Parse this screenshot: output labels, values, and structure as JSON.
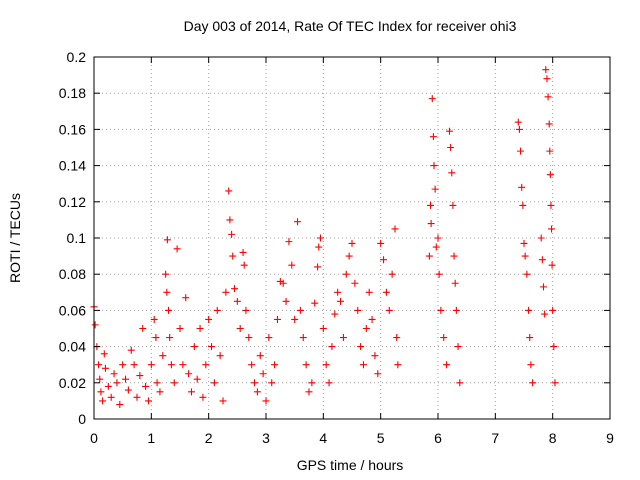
{
  "chart_data": {
    "type": "scatter",
    "title": "Day 003 of 2014, Rate Of TEC Index for receiver ohi3",
    "xlabel": "GPS time / hours",
    "ylabel": "ROTI / TECUs",
    "xlim": [
      0,
      9
    ],
    "ylim": [
      0,
      0.2
    ],
    "xticks": [
      "0",
      "1",
      "2",
      "3",
      "4",
      "5",
      "6",
      "7",
      "8",
      "9"
    ],
    "yticks": [
      "0",
      "0.02",
      "0.04",
      "0.06",
      "0.08",
      "0.1",
      "0.12",
      "0.14",
      "0.16",
      "0.18",
      "0.2"
    ],
    "grid": true,
    "marker": "+",
    "color": "#ff0000",
    "series": [
      {
        "name": "ROTI",
        "points": [
          [
            0.0,
            0.062
          ],
          [
            0.02,
            0.052
          ],
          [
            0.05,
            0.04
          ],
          [
            0.08,
            0.03
          ],
          [
            0.1,
            0.022
          ],
          [
            0.12,
            0.015
          ],
          [
            0.15,
            0.01
          ],
          [
            0.18,
            0.036
          ],
          [
            0.2,
            0.028
          ],
          [
            0.25,
            0.018
          ],
          [
            0.3,
            0.012
          ],
          [
            0.35,
            0.025
          ],
          [
            0.4,
            0.02
          ],
          [
            0.45,
            0.008
          ],
          [
            0.5,
            0.03
          ],
          [
            0.55,
            0.022
          ],
          [
            0.6,
            0.016
          ],
          [
            0.65,
            0.038
          ],
          [
            0.7,
            0.03
          ],
          [
            0.75,
            0.012
          ],
          [
            0.8,
            0.024
          ],
          [
            0.85,
            0.05
          ],
          [
            0.9,
            0.018
          ],
          [
            0.95,
            0.01
          ],
          [
            1.0,
            0.03
          ],
          [
            1.05,
            0.055
          ],
          [
            1.08,
            0.045
          ],
          [
            1.1,
            0.02
          ],
          [
            1.15,
            0.015
          ],
          [
            1.2,
            0.035
          ],
          [
            1.25,
            0.08
          ],
          [
            1.27,
            0.07
          ],
          [
            1.28,
            0.099
          ],
          [
            1.3,
            0.06
          ],
          [
            1.32,
            0.045
          ],
          [
            1.35,
            0.03
          ],
          [
            1.4,
            0.02
          ],
          [
            1.45,
            0.094
          ],
          [
            1.5,
            0.05
          ],
          [
            1.55,
            0.03
          ],
          [
            1.6,
            0.067
          ],
          [
            1.65,
            0.025
          ],
          [
            1.7,
            0.015
          ],
          [
            1.75,
            0.04
          ],
          [
            1.8,
            0.022
          ],
          [
            1.85,
            0.05
          ],
          [
            1.9,
            0.012
          ],
          [
            1.95,
            0.03
          ],
          [
            2.0,
            0.055
          ],
          [
            2.05,
            0.04
          ],
          [
            2.1,
            0.02
          ],
          [
            2.15,
            0.06
          ],
          [
            2.2,
            0.035
          ],
          [
            2.25,
            0.01
          ],
          [
            2.3,
            0.07
          ],
          [
            2.35,
            0.126
          ],
          [
            2.37,
            0.11
          ],
          [
            2.4,
            0.102
          ],
          [
            2.42,
            0.09
          ],
          [
            2.45,
            0.072
          ],
          [
            2.5,
            0.065
          ],
          [
            2.55,
            0.05
          ],
          [
            2.6,
            0.092
          ],
          [
            2.62,
            0.085
          ],
          [
            2.65,
            0.06
          ],
          [
            2.7,
            0.045
          ],
          [
            2.75,
            0.03
          ],
          [
            2.8,
            0.02
          ],
          [
            2.85,
            0.015
          ],
          [
            2.9,
            0.035
          ],
          [
            2.95,
            0.025
          ],
          [
            3.0,
            0.01
          ],
          [
            3.05,
            0.045
          ],
          [
            3.1,
            0.02
          ],
          [
            3.15,
            0.03
          ],
          [
            3.2,
            0.055
          ],
          [
            3.25,
            0.076
          ],
          [
            3.3,
            0.075
          ],
          [
            3.35,
            0.065
          ],
          [
            3.4,
            0.098
          ],
          [
            3.45,
            0.085
          ],
          [
            3.5,
            0.055
          ],
          [
            3.55,
            0.109
          ],
          [
            3.6,
            0.06
          ],
          [
            3.65,
            0.045
          ],
          [
            3.7,
            0.03
          ],
          [
            3.75,
            0.015
          ],
          [
            3.8,
            0.02
          ],
          [
            3.85,
            0.064
          ],
          [
            3.9,
            0.084
          ],
          [
            3.92,
            0.095
          ],
          [
            3.95,
            0.1
          ],
          [
            4.0,
            0.05
          ],
          [
            4.05,
            0.03
          ],
          [
            4.1,
            0.02
          ],
          [
            4.15,
            0.04
          ],
          [
            4.2,
            0.058
          ],
          [
            4.25,
            0.07
          ],
          [
            4.3,
            0.065
          ],
          [
            4.35,
            0.045
          ],
          [
            4.4,
            0.08
          ],
          [
            4.45,
            0.09
          ],
          [
            4.5,
            0.097
          ],
          [
            4.55,
            0.075
          ],
          [
            4.6,
            0.06
          ],
          [
            4.65,
            0.04
          ],
          [
            4.7,
            0.03
          ],
          [
            4.75,
            0.05
          ],
          [
            4.8,
            0.07
          ],
          [
            4.85,
            0.055
          ],
          [
            4.9,
            0.035
          ],
          [
            4.95,
            0.025
          ],
          [
            5.0,
            0.097
          ],
          [
            5.05,
            0.088
          ],
          [
            5.1,
            0.07
          ],
          [
            5.15,
            0.06
          ],
          [
            5.2,
            0.08
          ],
          [
            5.25,
            0.105
          ],
          [
            5.28,
            0.045
          ],
          [
            5.3,
            0.03
          ],
          [
            5.85,
            0.09
          ],
          [
            5.87,
            0.118
          ],
          [
            5.88,
            0.108
          ],
          [
            5.9,
            0.177
          ],
          [
            5.92,
            0.156
          ],
          [
            5.93,
            0.14
          ],
          [
            5.95,
            0.127
          ],
          [
            5.97,
            0.095
          ],
          [
            6.0,
            0.1
          ],
          [
            6.02,
            0.08
          ],
          [
            6.05,
            0.06
          ],
          [
            6.1,
            0.045
          ],
          [
            6.15,
            0.03
          ],
          [
            6.2,
            0.159
          ],
          [
            6.22,
            0.15
          ],
          [
            6.24,
            0.136
          ],
          [
            6.26,
            0.118
          ],
          [
            6.28,
            0.09
          ],
          [
            6.3,
            0.075
          ],
          [
            6.32,
            0.06
          ],
          [
            6.35,
            0.04
          ],
          [
            6.38,
            0.02
          ],
          [
            7.4,
            0.164
          ],
          [
            7.42,
            0.16
          ],
          [
            7.44,
            0.148
          ],
          [
            7.46,
            0.128
          ],
          [
            7.48,
            0.118
          ],
          [
            7.5,
            0.097
          ],
          [
            7.52,
            0.09
          ],
          [
            7.55,
            0.08
          ],
          [
            7.58,
            0.06
          ],
          [
            7.6,
            0.045
          ],
          [
            7.62,
            0.03
          ],
          [
            7.65,
            0.02
          ],
          [
            7.8,
            0.1
          ],
          [
            7.82,
            0.088
          ],
          [
            7.84,
            0.073
          ],
          [
            7.86,
            0.058
          ],
          [
            7.88,
            0.193
          ],
          [
            7.9,
            0.188
          ],
          [
            7.92,
            0.178
          ],
          [
            7.94,
            0.163
          ],
          [
            7.95,
            0.148
          ],
          [
            7.96,
            0.135
          ],
          [
            7.97,
            0.118
          ],
          [
            7.98,
            0.105
          ],
          [
            7.99,
            0.085
          ],
          [
            8.0,
            0.06
          ],
          [
            8.02,
            0.04
          ],
          [
            8.04,
            0.02
          ]
        ]
      }
    ]
  }
}
